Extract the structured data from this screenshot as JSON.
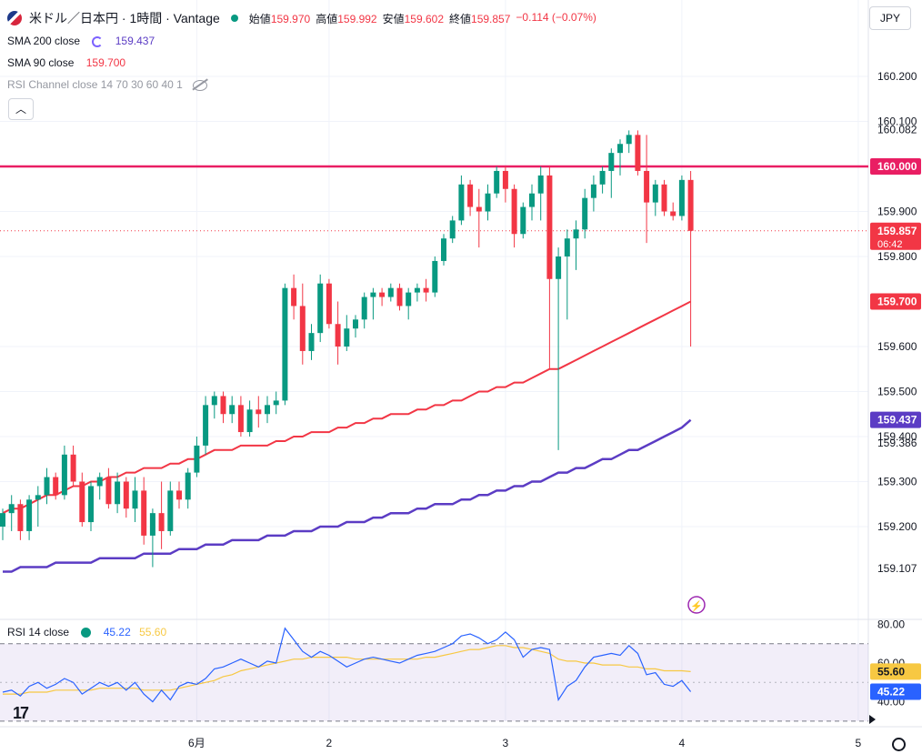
{
  "header": {
    "title": "米ドル／日本円 · 1時間 · Vantage",
    "ohlc": [
      {
        "label": "始値",
        "value": "159.970"
      },
      {
        "label": "高値",
        "value": "159.992"
      },
      {
        "label": "安値",
        "value": "159.602"
      },
      {
        "label": "終値",
        "value": "159.857"
      }
    ],
    "change": "−0.114 (−0.07%)",
    "currency_button": "JPY"
  },
  "indicators": {
    "sma200": {
      "label": "SMA 200 close",
      "value": "159.437",
      "color": "#5b3cc4"
    },
    "sma90": {
      "label": "SMA 90 close",
      "value": "159.700",
      "color": "#f23645"
    },
    "rsi_channel": {
      "label": "RSI Channel close 14 70 30 60 40 1"
    },
    "rsi": {
      "label": "RSI 14 close",
      "value": "45.22",
      "ma_value": "55.60",
      "color": "#2962ff",
      "ma_color": "#f7c842"
    }
  },
  "colors": {
    "up": "#089981",
    "down": "#f23645",
    "level": "#e91e63",
    "band": "#7e57c2"
  },
  "chart_data": [
    {
      "type": "candlestick",
      "title": "米ドル／日本円 · 1時間 · Vantage",
      "price_axis": {
        "ylim": [
          159.0,
          160.3
        ],
        "ticks": [
          "160.200",
          "160.100",
          "160.000",
          "159.900",
          "159.800",
          "159.600",
          "159.500",
          "159.400",
          "159.300",
          "159.200"
        ],
        "labels": [
          {
            "value": "160.082",
            "kind": "high"
          },
          {
            "value": "159.386",
            "kind": "low"
          },
          {
            "value": "159.107",
            "kind": "low"
          }
        ],
        "badges": [
          {
            "value": "160.000",
            "kind": "level",
            "color": "#e91e63"
          },
          {
            "value": "159.857",
            "kind": "last",
            "color": "#f23645",
            "countdown": "06:42"
          },
          {
            "value": "159.700",
            "kind": "sma90",
            "color": "#f23645"
          },
          {
            "value": "159.437",
            "kind": "sma200",
            "color": "#5b3cc4"
          }
        ]
      },
      "x_axis": {
        "ticks": [
          {
            "label": "6月",
            "bar": 22
          },
          {
            "label": "2",
            "bar": 37
          },
          {
            "label": "3",
            "bar": 57
          },
          {
            "label": "4",
            "bar": 77
          },
          {
            "label": "5",
            "bar": 97
          }
        ]
      },
      "horizontal_line": 160.0,
      "bars": [
        [
          159.2,
          159.24,
          159.17,
          159.23
        ],
        [
          159.23,
          159.27,
          159.19,
          159.25
        ],
        [
          159.25,
          159.26,
          159.17,
          159.19
        ],
        [
          159.19,
          159.27,
          159.17,
          159.26
        ],
        [
          159.26,
          159.29,
          159.2,
          159.27
        ],
        [
          159.27,
          159.33,
          159.25,
          159.31
        ],
        [
          159.31,
          159.32,
          159.26,
          159.27
        ],
        [
          159.27,
          159.38,
          159.26,
          159.36
        ],
        [
          159.36,
          159.38,
          159.29,
          159.3
        ],
        [
          159.3,
          159.32,
          159.2,
          159.21
        ],
        [
          159.21,
          159.3,
          159.19,
          159.29
        ],
        [
          159.29,
          159.32,
          159.26,
          159.31
        ],
        [
          159.31,
          159.33,
          159.24,
          159.25
        ],
        [
          159.25,
          159.32,
          159.23,
          159.3
        ],
        [
          159.3,
          159.31,
          159.22,
          159.24
        ],
        [
          159.24,
          159.31,
          159.21,
          159.28
        ],
        [
          159.28,
          159.31,
          159.16,
          159.18
        ],
        [
          159.18,
          159.24,
          159.11,
          159.23
        ],
        [
          159.23,
          159.3,
          159.15,
          159.19
        ],
        [
          159.19,
          159.3,
          159.18,
          159.28
        ],
        [
          159.28,
          159.3,
          159.24,
          159.26
        ],
        [
          159.26,
          159.33,
          159.24,
          159.32
        ],
        [
          159.32,
          159.4,
          159.31,
          159.38
        ],
        [
          159.38,
          159.49,
          159.36,
          159.47
        ],
        [
          159.47,
          159.5,
          159.44,
          159.49
        ],
        [
          159.49,
          159.5,
          159.43,
          159.45
        ],
        [
          159.45,
          159.49,
          159.43,
          159.47
        ],
        [
          159.47,
          159.49,
          159.4,
          159.41
        ],
        [
          159.41,
          159.48,
          159.4,
          159.46
        ],
        [
          159.46,
          159.49,
          159.42,
          159.45
        ],
        [
          159.45,
          159.49,
          159.43,
          159.47
        ],
        [
          159.47,
          159.5,
          159.45,
          159.48
        ],
        [
          159.48,
          159.74,
          159.47,
          159.73
        ],
        [
          159.73,
          159.76,
          159.66,
          159.69
        ],
        [
          159.69,
          159.74,
          159.56,
          159.59
        ],
        [
          159.59,
          159.65,
          159.57,
          159.63
        ],
        [
          159.63,
          159.76,
          159.61,
          159.74
        ],
        [
          159.74,
          159.75,
          159.64,
          159.65
        ],
        [
          159.65,
          159.7,
          159.56,
          159.6
        ],
        [
          159.6,
          159.67,
          159.59,
          159.64
        ],
        [
          159.64,
          159.67,
          159.62,
          159.66
        ],
        [
          159.66,
          159.72,
          159.64,
          159.71
        ],
        [
          159.71,
          159.73,
          159.66,
          159.72
        ],
        [
          159.72,
          159.73,
          159.69,
          159.71
        ],
        [
          159.71,
          159.74,
          159.7,
          159.73
        ],
        [
          159.73,
          159.74,
          159.68,
          159.69
        ],
        [
          159.69,
          159.73,
          159.66,
          159.72
        ],
        [
          159.72,
          159.74,
          159.7,
          159.73
        ],
        [
          159.73,
          159.75,
          159.7,
          159.72
        ],
        [
          159.72,
          159.8,
          159.71,
          159.79
        ],
        [
          159.79,
          159.85,
          159.78,
          159.84
        ],
        [
          159.84,
          159.89,
          159.83,
          159.88
        ],
        [
          159.88,
          159.98,
          159.87,
          159.96
        ],
        [
          159.96,
          159.97,
          159.89,
          159.91
        ],
        [
          159.91,
          159.95,
          159.82,
          159.9
        ],
        [
          159.9,
          159.96,
          159.88,
          159.94
        ],
        [
          159.94,
          160.0,
          159.93,
          159.99
        ],
        [
          159.99,
          160.0,
          159.92,
          159.95
        ],
        [
          159.95,
          159.96,
          159.82,
          159.85
        ],
        [
          159.85,
          159.92,
          159.84,
          159.91
        ],
        [
          159.91,
          159.96,
          159.88,
          159.94
        ],
        [
          159.94,
          160.0,
          159.88,
          159.98
        ],
        [
          159.98,
          160.0,
          159.55,
          159.75
        ],
        [
          159.75,
          159.82,
          159.37,
          159.8
        ],
        [
          159.8,
          159.86,
          159.66,
          159.84
        ],
        [
          159.84,
          159.88,
          159.77,
          159.86
        ],
        [
          159.86,
          159.95,
          159.84,
          159.93
        ],
        [
          159.93,
          159.98,
          159.9,
          159.96
        ],
        [
          159.96,
          160.0,
          159.94,
          159.99
        ],
        [
          159.99,
          160.04,
          159.93,
          160.03
        ],
        [
          160.03,
          160.06,
          159.98,
          160.05
        ],
        [
          160.05,
          160.08,
          160.03,
          160.07
        ],
        [
          160.07,
          160.08,
          159.98,
          159.99
        ],
        [
          159.99,
          160.07,
          159.83,
          159.92
        ],
        [
          159.92,
          159.97,
          159.89,
          159.96
        ],
        [
          159.96,
          159.97,
          159.89,
          159.9
        ],
        [
          159.9,
          159.92,
          159.88,
          159.89
        ],
        [
          159.89,
          159.98,
          159.88,
          159.97
        ],
        [
          159.97,
          159.99,
          159.6,
          159.857
        ]
      ],
      "sma90": [
        159.23,
        159.24,
        159.24,
        159.25,
        159.26,
        159.27,
        159.27,
        159.28,
        159.29,
        159.29,
        159.3,
        159.3,
        159.31,
        159.31,
        159.32,
        159.32,
        159.33,
        159.33,
        159.33,
        159.34,
        159.34,
        159.35,
        159.35,
        159.36,
        159.37,
        159.37,
        159.37,
        159.38,
        159.38,
        159.38,
        159.38,
        159.39,
        159.39,
        159.4,
        159.4,
        159.41,
        159.41,
        159.41,
        159.42,
        159.42,
        159.43,
        159.43,
        159.44,
        159.44,
        159.45,
        159.45,
        159.45,
        159.46,
        159.46,
        159.47,
        159.47,
        159.48,
        159.48,
        159.49,
        159.5,
        159.5,
        159.51,
        159.51,
        159.52,
        159.52,
        159.53,
        159.54,
        159.55,
        159.55,
        159.56,
        159.57,
        159.58,
        159.59,
        159.6,
        159.61,
        159.62,
        159.63,
        159.64,
        159.65,
        159.66,
        159.67,
        159.68,
        159.69,
        159.7
      ],
      "sma200": [
        159.1,
        159.1,
        159.11,
        159.11,
        159.11,
        159.11,
        159.12,
        159.12,
        159.12,
        159.12,
        159.12,
        159.13,
        159.13,
        159.13,
        159.13,
        159.13,
        159.14,
        159.14,
        159.14,
        159.14,
        159.15,
        159.15,
        159.15,
        159.16,
        159.16,
        159.16,
        159.17,
        159.17,
        159.17,
        159.17,
        159.18,
        159.18,
        159.18,
        159.19,
        159.19,
        159.19,
        159.2,
        159.2,
        159.2,
        159.21,
        159.21,
        159.21,
        159.22,
        159.22,
        159.23,
        159.23,
        159.23,
        159.24,
        159.24,
        159.25,
        159.25,
        159.25,
        159.26,
        159.26,
        159.27,
        159.27,
        159.28,
        159.28,
        159.29,
        159.29,
        159.3,
        159.3,
        159.31,
        159.32,
        159.32,
        159.33,
        159.33,
        159.34,
        159.35,
        159.35,
        159.36,
        159.37,
        159.37,
        159.38,
        159.39,
        159.4,
        159.41,
        159.42,
        159.437
      ]
    },
    {
      "type": "line",
      "title": "RSI 14 close",
      "ylim": [
        35,
        82
      ],
      "ticks": [
        "80.00",
        "60.00",
        "40.00"
      ],
      "band": [
        30,
        70
      ],
      "midline": 50,
      "badges": [
        {
          "value": "55.60",
          "color": "#f7c842"
        },
        {
          "value": "45.22",
          "color": "#2962ff"
        }
      ],
      "series": [
        {
          "name": "RSI 14 close",
          "values": [
            45,
            46,
            43,
            48,
            50,
            47,
            49,
            52,
            50,
            44,
            47,
            50,
            48,
            50,
            46,
            50,
            44,
            40,
            46,
            41,
            48,
            50,
            49,
            52,
            57,
            58,
            60,
            62,
            60,
            58,
            61,
            60,
            78,
            72,
            66,
            63,
            66,
            64,
            61,
            58,
            60,
            62,
            63,
            62,
            61,
            60,
            62,
            64,
            65,
            66,
            68,
            70,
            74,
            75,
            73,
            70,
            72,
            76,
            72,
            63,
            67,
            68,
            67,
            41,
            48,
            51,
            58,
            63,
            64,
            65,
            64,
            69,
            65,
            54,
            55,
            49,
            48,
            51,
            45.22
          ]
        },
        {
          "name": "RSI-based MA",
          "values": [
            44,
            44,
            44,
            45,
            45,
            45,
            46,
            46,
            46,
            46,
            46,
            47,
            47,
            47,
            47,
            47,
            46,
            46,
            46,
            46,
            47,
            48,
            49,
            50,
            51,
            53,
            54,
            56,
            57,
            58,
            59,
            60,
            61,
            62,
            62,
            63,
            63,
            63,
            63,
            63,
            62,
            62,
            62,
            62,
            62,
            62,
            62,
            62,
            63,
            63,
            64,
            65,
            66,
            67,
            67,
            68,
            69,
            69,
            68,
            68,
            67,
            66,
            65,
            62,
            61,
            61,
            60,
            60,
            59,
            59,
            59,
            58,
            58,
            57,
            57,
            56,
            56,
            56,
            55.6
          ]
        }
      ]
    }
  ]
}
